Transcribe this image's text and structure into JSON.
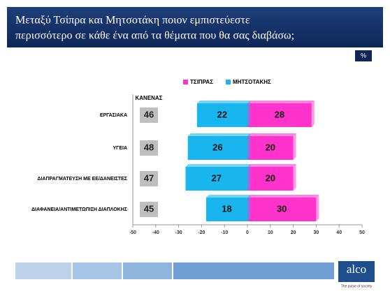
{
  "chart_data": {
    "type": "diverging-bar",
    "title": [
      "Μεταξύ Τσίπρα και Μητσοτάκη ποιον εμπιστεύεστε",
      "περισσότερο σε κάθε ένα από τα θέματα που θα σας διαβάσω;"
    ],
    "unit_badge": "%",
    "categories": [
      "ΕΡΓΑΣΙΑΚΑ",
      "ΥΓΕΙΑ",
      "ΔΙΑΠΡΑΓΜΑΤΕΥΣΗ ΜΕ ΕΕ/ΔΑΝΕΙΣΤΕΣ",
      "ΔΙΑΦΑΝΕΙΑ/ΑΝΤΙΜΕΤΩΠΙΣΗ ΔΙΑΠΛΟΚΗΣ"
    ],
    "series": [
      {
        "name": "ΤΣΙΠΡΑΣ",
        "color": "#ff33cc",
        "side": "right",
        "values": [
          28,
          20,
          20,
          30
        ]
      },
      {
        "name": "ΜΗΤΣΟΤΑΚΗΣ",
        "color": "#19b5ee",
        "side": "left",
        "values": [
          22,
          26,
          27,
          18
        ]
      }
    ],
    "none_column": {
      "name": "ΚΑΝΕΝΑΣ",
      "color": "#bfbfbf",
      "values": [
        46,
        48,
        47,
        45
      ]
    },
    "xlim": [
      -50,
      50
    ],
    "xticks": [
      -50,
      -40,
      -30,
      -20,
      -10,
      0,
      10,
      20,
      30,
      40,
      50
    ],
    "logo": "alco",
    "logo_tagline": "The pulse of society"
  }
}
